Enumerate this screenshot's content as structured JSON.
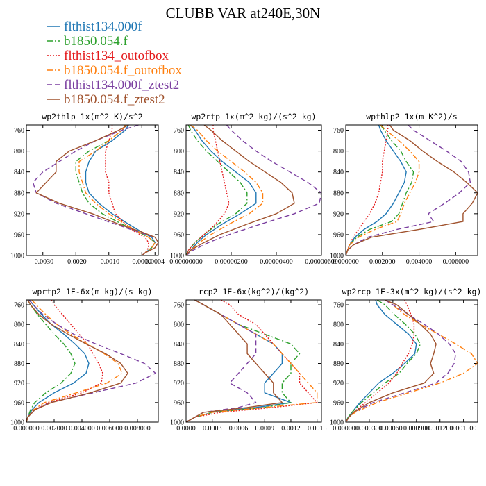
{
  "figure": {
    "title": "CLUBB VAR at240E,30N"
  },
  "legend": [
    {
      "name": "flthist134.000f",
      "color": "#1f77b4",
      "dash": "solid"
    },
    {
      "name": "b1850.054.f",
      "color": "#2ca02c",
      "dash": "dashdot"
    },
    {
      "name": "flthist134_outofbox",
      "color": "#e41a1c",
      "dash": "dotted"
    },
    {
      "name": "b1850.054.f_outofbox",
      "color": "#ff7f0e",
      "dash": "dashdot"
    },
    {
      "name": "flthist134.000f_ztest2",
      "color": "#7b3fa0",
      "dash": "dashed"
    },
    {
      "name": "b1850.054.f_ztest2",
      "color": "#a0522d",
      "dash": "solid"
    }
  ],
  "chart_data": [
    {
      "type": "line",
      "title": "wp2thlp  1x(m^2 K)/s^2",
      "xlim": [
        -0.0035,
        0.0005
      ],
      "ylim": [
        1000,
        750
      ],
      "xticks": [
        -0.003,
        -0.002,
        -0.001,
        0.0,
        0.0004
      ],
      "xticklabels": [
        "-0.0030",
        "-0.0020",
        "-0.0010",
        "0.0000",
        "0.0004"
      ],
      "yticks": [
        760,
        800,
        840,
        880,
        920,
        960,
        1000
      ],
      "y": [
        750,
        760,
        780,
        800,
        820,
        840,
        860,
        880,
        900,
        920,
        940,
        955,
        965,
        975,
        985,
        995,
        1000
      ],
      "series": [
        {
          "name": "flthist134.000f",
          "x": [
            -0.0004,
            -0.0005,
            -0.0009,
            -0.0014,
            -0.0016,
            -0.0017,
            -0.0017,
            -0.0016,
            -0.0013,
            -0.0009,
            -0.0004,
            0.0,
            0.0003,
            0.0004,
            0.0003,
            0.0001,
            0.0
          ]
        },
        {
          "name": "b1850.054.f",
          "x": [
            -0.0005,
            -0.0006,
            -0.001,
            -0.0016,
            -0.002,
            -0.002,
            -0.0019,
            -0.0018,
            -0.0016,
            -0.0012,
            -0.0006,
            -0.0001,
            0.0002,
            0.0004,
            0.0003,
            0.0001,
            0.0
          ]
        },
        {
          "name": "flthist134_outofbox",
          "x": [
            -0.0009,
            -0.0009,
            -0.001,
            -0.0011,
            -0.0011,
            -0.0011,
            -0.001,
            -0.001,
            -0.0009,
            -0.0008,
            -0.0005,
            -0.0002,
            0.0001,
            0.0002,
            0.0002,
            0.0001,
            0.0
          ]
        },
        {
          "name": "b1850.054.f_outofbox",
          "x": [
            -0.0005,
            -0.0006,
            -0.001,
            -0.0014,
            -0.0019,
            -0.0019,
            -0.0018,
            -0.0017,
            -0.0014,
            -0.001,
            -0.0005,
            -0.0001,
            0.0002,
            0.0004,
            0.0003,
            0.0001,
            0.0
          ]
        },
        {
          "name": "flthist134.000f_ztest2",
          "x": [
            -0.0001,
            -0.0006,
            -0.0014,
            -0.002,
            -0.0025,
            -0.003,
            -0.0033,
            -0.0032,
            -0.0026,
            -0.0017,
            -0.0008,
            -0.0001,
            0.0004,
            0.0005,
            0.0004,
            0.0001,
            0.0
          ]
        },
        {
          "name": "b1850.054.f_ztest2",
          "x": [
            -0.0004,
            -0.0007,
            -0.0014,
            -0.0022,
            -0.0026,
            -0.0026,
            -0.0029,
            -0.0032,
            -0.0025,
            -0.0015,
            -0.0007,
            0.0,
            0.0004,
            0.0005,
            0.0004,
            0.0001,
            0.0
          ]
        }
      ]
    },
    {
      "type": "line",
      "title": "wp2rtp  1x(m^2 kg)/(s^2 kg)",
      "xlim": [
        0.0,
        6e-06
      ],
      "ylim": [
        1000,
        750
      ],
      "xticks": [
        0.0,
        2e-06,
        4e-06,
        6e-06
      ],
      "xticklabels": [
        "0.00000000",
        "0.00000200",
        "0.00000400",
        "0.00000600"
      ],
      "yticks": [
        760,
        800,
        840,
        880,
        920,
        960,
        1000
      ],
      "y": [
        750,
        760,
        780,
        800,
        820,
        840,
        860,
        880,
        900,
        920,
        940,
        960,
        975,
        990,
        1000
      ],
      "series": [
        {
          "name": "flthist134.000f",
          "x": [
            2e-07,
            4e-07,
            7e-07,
            1.1e-06,
            1.6e-06,
            2.2e-06,
            2.8e-06,
            3.1e-06,
            3.1e-06,
            2.4e-06,
            1.6e-06,
            9e-07,
            5e-07,
            2e-07,
            0.0
          ]
        },
        {
          "name": "b1850.054.f",
          "x": [
            1e-07,
            2e-07,
            5e-07,
            9e-07,
            1.4e-06,
            1.9e-06,
            2.4e-06,
            2.7e-06,
            2.7e-06,
            2.2e-06,
            1.4e-06,
            8e-07,
            4e-07,
            1e-07,
            0.0
          ]
        },
        {
          "name": "flthist134_outofbox",
          "x": [
            1.2e-06,
            1.2e-06,
            1.3e-06,
            1.4e-06,
            1.5e-06,
            1.6e-06,
            1.7e-06,
            1.8e-06,
            1.9e-06,
            1.7e-06,
            1.3e-06,
            8e-07,
            4e-07,
            1e-07,
            0.0
          ]
        },
        {
          "name": "b1850.054.f_outofbox",
          "x": [
            2e-07,
            5e-07,
            9e-07,
            1.4e-06,
            2e-06,
            2.6e-06,
            3.1e-06,
            3.4e-06,
            3.4e-06,
            2.8e-06,
            1.9e-06,
            1.1e-06,
            6e-07,
            2e-07,
            0.0
          ]
        },
        {
          "name": "flthist134.000f_ztest2",
          "x": [
            1.8e-06,
            2e-06,
            2.5e-06,
            3.1e-06,
            3.8e-06,
            4.6e-06,
            5.4e-06,
            6e-06,
            5.9e-06,
            4.8e-06,
            3.3e-06,
            1.9e-06,
            1e-06,
            3e-07,
            0.0
          ]
        },
        {
          "name": "b1850.054.f_ztest2",
          "x": [
            8e-07,
            1.1e-06,
            1.6e-06,
            2.2e-06,
            2.8e-06,
            3.5e-06,
            4.2e-06,
            4.7e-06,
            4.8e-06,
            4e-06,
            2.7e-06,
            1.5e-06,
            8e-07,
            2e-07,
            0.0
          ]
        }
      ]
    },
    {
      "type": "line",
      "title": "wpthlp2  1x(m K^2)/s",
      "xlim": [
        0.0,
        0.0072
      ],
      "ylim": [
        1000,
        750
      ],
      "xticks": [
        0.0,
        0.002,
        0.004,
        0.006
      ],
      "xticklabels": [
        "0.000000",
        "0.002000",
        "0.004000",
        "0.006000"
      ],
      "yticks": [
        760,
        800,
        840,
        880,
        920,
        960,
        1000
      ],
      "y": [
        750,
        760,
        780,
        800,
        820,
        840,
        860,
        880,
        900,
        920,
        935,
        950,
        965,
        980,
        990,
        1000
      ],
      "series": [
        {
          "name": "flthist134.000f",
          "x": [
            0.0018,
            0.0019,
            0.0022,
            0.0026,
            0.003,
            0.0033,
            0.0032,
            0.0029,
            0.0026,
            0.0022,
            0.0017,
            0.001,
            0.0005,
            0.0002,
            0.0001,
            0.0
          ]
        },
        {
          "name": "b1850.054.f",
          "x": [
            0.0019,
            0.0021,
            0.0025,
            0.003,
            0.0033,
            0.0037,
            0.0036,
            0.0033,
            0.0031,
            0.0029,
            0.0025,
            0.0013,
            0.0006,
            0.0002,
            0.0001,
            0.0
          ]
        },
        {
          "name": "flthist134_outofbox",
          "x": [
            0.0023,
            0.0023,
            0.0022,
            0.0021,
            0.002,
            0.002,
            0.0019,
            0.0018,
            0.0016,
            0.0013,
            0.001,
            0.0007,
            0.0004,
            0.0002,
            0.0001,
            0.0
          ]
        },
        {
          "name": "b1850.054.f_outofbox",
          "x": [
            0.0019,
            0.0022,
            0.0029,
            0.0035,
            0.004,
            0.004,
            0.0038,
            0.0035,
            0.0032,
            0.003,
            0.0028,
            0.0016,
            0.0007,
            0.0002,
            0.0001,
            0.0
          ]
        },
        {
          "name": "flthist134.000f_ztest2",
          "x": [
            0.0034,
            0.0037,
            0.0046,
            0.0055,
            0.0063,
            0.0067,
            0.0068,
            0.0062,
            0.0054,
            0.0045,
            0.0048,
            0.0028,
            0.0012,
            0.0004,
            0.0001,
            0.0
          ]
        },
        {
          "name": "b1850.054.f_ztest2",
          "x": [
            0.0024,
            0.0026,
            0.0035,
            0.0042,
            0.005,
            0.0059,
            0.0066,
            0.0072,
            0.0069,
            0.0064,
            0.0064,
            0.004,
            0.0014,
            0.0004,
            0.0001,
            0.0
          ]
        }
      ]
    },
    {
      "type": "line",
      "title": "wprtp2  1E-6x(m kg)/(s kg)",
      "xlim": [
        0.0,
        0.0095
      ],
      "ylim": [
        1000,
        750
      ],
      "xticks": [
        0.0,
        0.002,
        0.004,
        0.006,
        0.008
      ],
      "xticklabels": [
        "0.000000",
        "0.002000",
        "0.004000",
        "0.006000",
        "0.008000"
      ],
      "yticks": [
        760,
        800,
        840,
        880,
        920,
        960,
        1000
      ],
      "y": [
        750,
        760,
        780,
        800,
        820,
        840,
        860,
        880,
        900,
        920,
        940,
        960,
        975,
        990,
        1000
      ],
      "series": [
        {
          "name": "flthist134.000f",
          "x": [
            0.0002,
            0.0005,
            0.0011,
            0.0018,
            0.0027,
            0.0035,
            0.0042,
            0.0045,
            0.0043,
            0.0034,
            0.002,
            0.0009,
            0.0004,
            0.0001,
            0.0
          ]
        },
        {
          "name": "b1850.054.f",
          "x": [
            0.0001,
            0.0003,
            0.0008,
            0.0014,
            0.002,
            0.0027,
            0.0032,
            0.0035,
            0.0032,
            0.0025,
            0.0014,
            0.0006,
            0.0003,
            0.0001,
            0.0
          ]
        },
        {
          "name": "flthist134_outofbox",
          "x": [
            0.0018,
            0.002,
            0.0026,
            0.0032,
            0.0038,
            0.0044,
            0.0048,
            0.0052,
            0.0055,
            0.0054,
            0.004,
            0.0016,
            0.0006,
            0.0001,
            0.0
          ]
        },
        {
          "name": "b1850.054.f_outofbox",
          "x": [
            0.0004,
            0.0007,
            0.0014,
            0.0022,
            0.0032,
            0.0044,
            0.0056,
            0.0066,
            0.0069,
            0.0058,
            0.0036,
            0.0013,
            0.0005,
            0.0001,
            0.0
          ]
        },
        {
          "name": "flthist134.000f_ztest2",
          "x": [
            0.0002,
            0.0005,
            0.0012,
            0.0022,
            0.0034,
            0.005,
            0.0068,
            0.0085,
            0.0093,
            0.0079,
            0.0048,
            0.0017,
            0.0006,
            0.0001,
            0.0
          ]
        },
        {
          "name": "b1850.054.f_ztest2",
          "x": [
            0.0001,
            0.0003,
            0.0009,
            0.0018,
            0.003,
            0.0043,
            0.0057,
            0.0068,
            0.0073,
            0.0068,
            0.0046,
            0.0018,
            0.0006,
            0.0001,
            0.0
          ]
        }
      ]
    },
    {
      "type": "line",
      "title": "rcp2  1E-6x(kg^2)/(kg^2)",
      "xlim": [
        0.0,
        0.00155
      ],
      "ylim": [
        1000,
        750
      ],
      "xticks": [
        0.0,
        0.0003,
        0.0006,
        0.0009,
        0.0012,
        0.0015
      ],
      "xticklabels": [
        "0.0000",
        "0.0003",
        "0.0006",
        "0.0009",
        "0.0012",
        "0.0015"
      ],
      "yticks": [
        760,
        800,
        840,
        880,
        920,
        960,
        1000
      ],
      "y": [
        750,
        760,
        780,
        800,
        820,
        840,
        860,
        880,
        900,
        920,
        940,
        960,
        970,
        980,
        990,
        1000
      ],
      "series": [
        {
          "name": "flthist134.000f",
          "x": [
            0.0001,
            0.0002,
            0.0004,
            0.0006,
            0.0008,
            0.001,
            0.0011,
            0.0011,
            0.001,
            0.0009,
            0.0009,
            0.0012,
            0.0008,
            0.0003,
            0.0001,
            0.0
          ]
        },
        {
          "name": "b1850.054.f",
          "x": [
            0.0001,
            0.0002,
            0.0004,
            0.0006,
            0.0009,
            0.0012,
            0.0013,
            0.0012,
            0.0012,
            0.0011,
            0.0011,
            0.0012,
            0.0009,
            0.0003,
            0.0001,
            0.0
          ]
        },
        {
          "name": "flthist134_outofbox",
          "x": [
            0.0004,
            0.0005,
            0.0006,
            0.0008,
            0.0009,
            0.001,
            0.0011,
            0.0012,
            0.0013,
            0.0013,
            0.0014,
            0.0015,
            0.001,
            0.0004,
            0.0001,
            0.0
          ]
        },
        {
          "name": "b1850.054.f_outofbox",
          "x": [
            0.0001,
            0.0002,
            0.0004,
            0.0006,
            0.0008,
            0.001,
            0.0011,
            0.0012,
            0.0013,
            0.0014,
            0.0015,
            0.0015,
            0.0009,
            0.0003,
            0.0001,
            0.0
          ]
        },
        {
          "name": "flthist134.000f_ztest2",
          "x": [
            0.0001,
            0.0002,
            0.0004,
            0.0006,
            0.0008,
            0.0008,
            0.0008,
            0.0007,
            0.0006,
            0.0005,
            0.0007,
            0.0008,
            0.0006,
            0.0002,
            0.0001,
            0.0
          ]
        },
        {
          "name": "b1850.054.f_ztest2",
          "x": [
            0.0001,
            0.0002,
            0.0004,
            0.0005,
            0.0006,
            0.0007,
            0.0007,
            0.0008,
            0.0009,
            0.001,
            0.001,
            0.0011,
            0.0007,
            0.0002,
            0.0001,
            0.0
          ]
        }
      ]
    },
    {
      "type": "line",
      "title": "wp2rcp  1E-3x(m^2 kg)/(s^2 kg)",
      "xlim": [
        0.0,
        0.00168
      ],
      "ylim": [
        1000,
        750
      ],
      "xticks": [
        0.0,
        0.0003,
        0.0006,
        0.0009,
        0.0012,
        0.0015
      ],
      "xticklabels": [
        "0.000000",
        "0.000300",
        "0.000600",
        "0.000900",
        "0.001200",
        "0.001500"
      ],
      "yticks": [
        760,
        800,
        840,
        880,
        920,
        960,
        1000
      ],
      "y": [
        750,
        760,
        780,
        800,
        820,
        840,
        860,
        880,
        900,
        920,
        940,
        960,
        980,
        990,
        1000
      ],
      "series": [
        {
          "name": "flthist134.000f",
          "x": [
            0.00038,
            0.0004,
            0.0005,
            0.00065,
            0.0008,
            0.0009,
            0.00088,
            0.00075,
            0.0006,
            0.00042,
            0.0003,
            0.00018,
            8e-05,
            3e-05,
            0.0
          ]
        },
        {
          "name": "b1850.054.f",
          "x": [
            0.0004,
            0.0005,
            0.00062,
            0.00076,
            0.00088,
            0.00095,
            0.0009,
            0.00078,
            0.00068,
            0.0005,
            0.00035,
            0.0002,
            8e-05,
            3e-05,
            0.0
          ]
        },
        {
          "name": "flthist134_outofbox",
          "x": [
            0.00075,
            0.00078,
            0.00083,
            0.00087,
            0.00087,
            0.00085,
            0.0008,
            0.00072,
            0.00065,
            0.00055,
            0.0004,
            0.00025,
            0.0001,
            4e-05,
            0.0
          ]
        },
        {
          "name": "b1850.054.f_outofbox",
          "x": [
            0.0005,
            0.0006,
            0.00075,
            0.00095,
            0.00118,
            0.0014,
            0.0016,
            0.00168,
            0.0015,
            0.0012,
            0.0008,
            0.0004,
            0.00012,
            4e-05,
            0.0
          ]
        },
        {
          "name": "flthist134.000f_ztest2",
          "x": [
            0.0005,
            0.0006,
            0.0008,
            0.001,
            0.00118,
            0.00132,
            0.0014,
            0.00138,
            0.0013,
            0.00115,
            0.00075,
            0.00035,
            0.0001,
            4e-05,
            0.0
          ]
        },
        {
          "name": "b1850.054.f_ztest2",
          "x": [
            0.0005,
            0.00065,
            0.0008,
            0.00095,
            0.00108,
            0.00115,
            0.00112,
            0.00108,
            0.00112,
            0.001,
            0.0006,
            0.0003,
            0.0001,
            4e-05,
            0.0
          ]
        }
      ]
    }
  ]
}
